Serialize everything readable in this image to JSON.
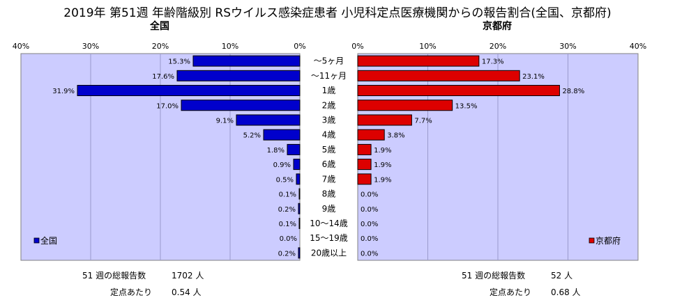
{
  "chart_data": {
    "type": "bar",
    "orientation": "horizontal",
    "title": "2019年 第51週 年齢階級別 RSウイルス感染症患者 小児科定点医療機関からの報告割合(全国、京都府)",
    "categories": [
      "～5ヶ月",
      "～11ヶ月",
      "1歳",
      "2歳",
      "3歳",
      "4歳",
      "5歳",
      "6歳",
      "7歳",
      "8歳",
      "9歳",
      "10～14歳",
      "15～19歳",
      "20歳以上"
    ],
    "xlim": [
      0,
      40
    ],
    "x_ticks": [
      "40%",
      "30%",
      "20%",
      "10%",
      "0%"
    ],
    "x_ticks_right": [
      "0%",
      "10%",
      "20%",
      "30%",
      "40%"
    ],
    "grid": true,
    "series": [
      {
        "name": "全国",
        "panel_title": "全国",
        "color": "#0000cc",
        "values": [
          15.3,
          17.6,
          31.9,
          17.0,
          9.1,
          5.2,
          1.8,
          0.9,
          0.5,
          0.1,
          0.2,
          0.1,
          0.0,
          0.2
        ],
        "labels": [
          "15.3%",
          "17.6%",
          "31.9%",
          "17.0%",
          "9.1%",
          "5.2%",
          "1.8%",
          "0.9%",
          "0.5%",
          "0.1%",
          "0.2%",
          "0.1%",
          "0.0%",
          "0.2%"
        ],
        "legend": "bottom-left"
      },
      {
        "name": "京都府",
        "panel_title": "京都府",
        "color": "#dd0000",
        "values": [
          17.3,
          23.1,
          28.8,
          13.5,
          7.7,
          3.8,
          1.9,
          1.9,
          1.9,
          0.0,
          0.0,
          0.0,
          0.0,
          0.0
        ],
        "labels": [
          "17.3%",
          "23.1%",
          "28.8%",
          "13.5%",
          "7.7%",
          "3.8%",
          "1.9%",
          "1.9%",
          "1.9%",
          "0.0%",
          "0.0%",
          "0.0%",
          "0.0%",
          "0.0%"
        ],
        "legend": "bottom-right"
      }
    ]
  },
  "footer": {
    "left": {
      "total_label": "51 週の総報告数",
      "total_value": "1702 人",
      "per_label": "定点あたり",
      "per_value": "0.54 人"
    },
    "right": {
      "total_label": "51 週の総報告数",
      "total_value": "52 人",
      "per_label": "定点あたり",
      "per_value": "0.68 人"
    }
  }
}
